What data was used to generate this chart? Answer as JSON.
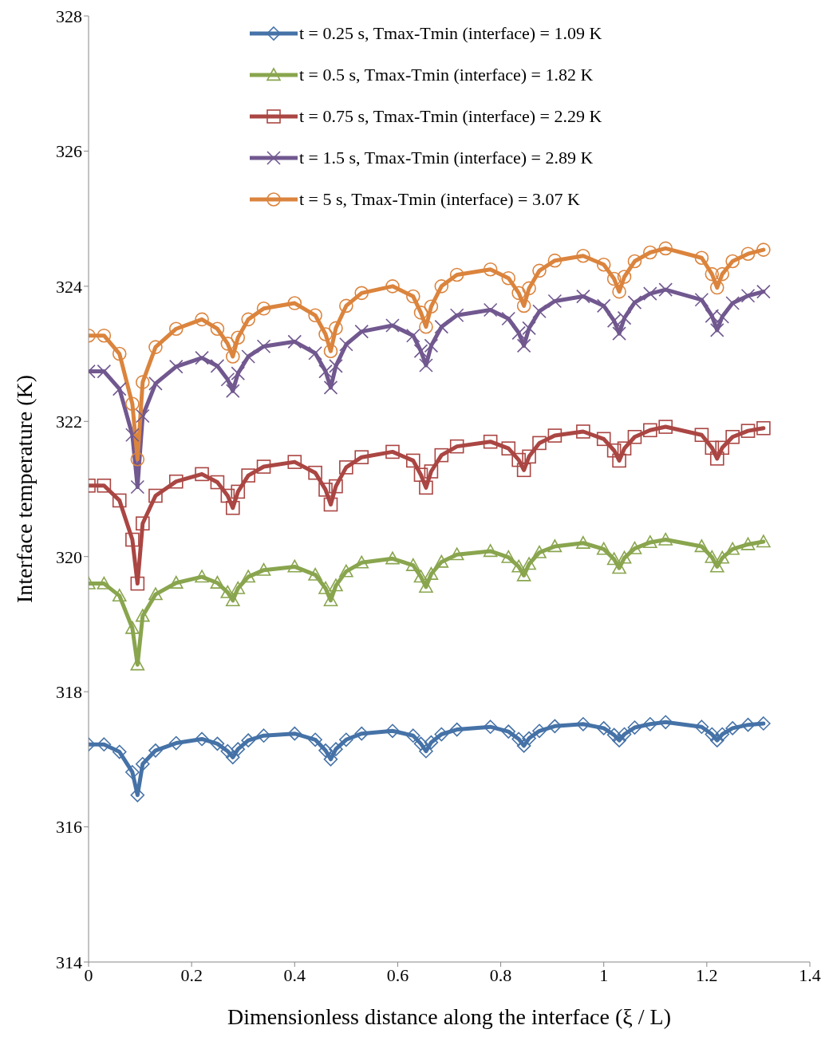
{
  "chart_data": {
    "type": "line",
    "xlabel": "Dimensionless distance along the interface (ξ / L)",
    "ylabel": "Interface temperature (K)",
    "x": [
      0,
      0.03,
      0.06,
      0.085,
      0.095,
      0.105,
      0.13,
      0.17,
      0.22,
      0.25,
      0.27,
      0.28,
      0.29,
      0.31,
      0.34,
      0.4,
      0.44,
      0.46,
      0.47,
      0.48,
      0.5,
      0.53,
      0.59,
      0.63,
      0.645,
      0.655,
      0.665,
      0.685,
      0.715,
      0.78,
      0.815,
      0.835,
      0.845,
      0.855,
      0.875,
      0.905,
      0.96,
      1.0,
      1.02,
      1.03,
      1.04,
      1.06,
      1.09,
      1.12,
      1.19,
      1.21,
      1.22,
      1.23,
      1.25,
      1.28,
      1.31
    ],
    "xlim": [
      0,
      1.4
    ],
    "xticks": [
      0,
      0.2,
      0.4,
      0.6,
      0.8,
      1,
      1.2,
      1.4
    ],
    "ylim": [
      314,
      328
    ],
    "yticks": [
      314,
      316,
      318,
      320,
      322,
      324,
      326,
      328
    ],
    "grid": false,
    "legend": "top right",
    "series": [
      {
        "name": "t = 0.25 s, Tmax-Tmin (interface) = 1.09 K",
        "color": "#4572a7",
        "marker": "diamond",
        "values": [
          317.22,
          317.22,
          317.11,
          316.81,
          316.47,
          316.93,
          317.13,
          317.24,
          317.3,
          317.23,
          317.12,
          317.03,
          317.15,
          317.28,
          317.35,
          317.38,
          317.29,
          317.13,
          317.0,
          317.15,
          317.29,
          317.38,
          317.42,
          317.35,
          317.23,
          317.12,
          317.25,
          317.37,
          317.44,
          317.48,
          317.41,
          317.3,
          317.2,
          317.31,
          317.42,
          317.49,
          317.52,
          317.46,
          317.36,
          317.28,
          317.37,
          317.47,
          317.52,
          317.55,
          317.48,
          317.37,
          317.28,
          317.37,
          317.46,
          317.51,
          317.53
        ]
      },
      {
        "name": "t = 0.5 s, Tmax-Tmin (interface) = 1.82 K",
        "color": "#89a54e",
        "marker": "triangle",
        "values": [
          319.6,
          319.6,
          319.42,
          318.94,
          318.4,
          319.12,
          319.44,
          319.61,
          319.7,
          319.61,
          319.47,
          319.35,
          319.53,
          319.7,
          319.8,
          319.85,
          319.73,
          319.53,
          319.35,
          319.57,
          319.78,
          319.91,
          319.97,
          319.87,
          319.7,
          319.55,
          319.74,
          319.92,
          320.03,
          320.08,
          319.99,
          319.85,
          319.72,
          319.89,
          320.06,
          320.15,
          320.2,
          320.11,
          319.96,
          319.83,
          319.98,
          320.12,
          320.21,
          320.25,
          320.15,
          319.99,
          319.85,
          319.98,
          320.11,
          320.18,
          320.22
        ]
      },
      {
        "name": "t = 0.75 s, Tmax-Tmin (interface) = 2.29 K",
        "color": "#aa4643",
        "marker": "square",
        "values": [
          321.05,
          321.05,
          320.83,
          320.25,
          319.6,
          320.49,
          320.9,
          321.11,
          321.22,
          321.1,
          320.9,
          320.72,
          320.96,
          321.2,
          321.33,
          321.4,
          321.24,
          320.99,
          320.77,
          321.04,
          321.32,
          321.47,
          321.55,
          321.42,
          321.21,
          321.02,
          321.26,
          321.5,
          321.63,
          321.7,
          321.6,
          321.43,
          321.28,
          321.48,
          321.68,
          321.79,
          321.85,
          321.74,
          321.57,
          321.42,
          321.6,
          321.77,
          321.87,
          321.92,
          321.8,
          321.61,
          321.45,
          321.61,
          321.77,
          321.86,
          321.9
        ]
      },
      {
        "name": "t = 1.5 s, Tmax-Tmin (interface) = 2.89 K",
        "color": "#71588f",
        "marker": "cross",
        "values": [
          322.74,
          322.74,
          322.48,
          321.8,
          321.03,
          322.08,
          322.56,
          322.81,
          322.94,
          322.82,
          322.62,
          322.45,
          322.71,
          322.96,
          323.11,
          323.18,
          323.01,
          322.74,
          322.5,
          322.82,
          323.14,
          323.33,
          323.42,
          323.27,
          323.04,
          322.83,
          323.12,
          323.4,
          323.57,
          323.65,
          323.52,
          323.31,
          323.12,
          323.38,
          323.63,
          323.78,
          323.85,
          323.71,
          323.49,
          323.3,
          323.53,
          323.76,
          323.89,
          323.95,
          323.8,
          323.56,
          323.35,
          323.55,
          323.75,
          323.86,
          323.92
        ]
      },
      {
        "name": "t = 5 s, Tmax-Tmin (interface) = 3.07 K",
        "color": "#db843d",
        "marker": "circle",
        "values": [
          323.27,
          323.27,
          323.0,
          322.26,
          321.44,
          322.58,
          323.1,
          323.37,
          323.51,
          323.37,
          323.15,
          322.96,
          323.24,
          323.51,
          323.67,
          323.75,
          323.57,
          323.29,
          323.04,
          323.38,
          323.71,
          323.9,
          324.0,
          323.85,
          323.61,
          323.4,
          323.7,
          324.0,
          324.17,
          324.25,
          324.12,
          323.9,
          323.71,
          323.97,
          324.23,
          324.38,
          324.45,
          324.32,
          324.11,
          323.92,
          324.14,
          324.37,
          324.5,
          324.56,
          324.42,
          324.18,
          323.98,
          324.18,
          324.37,
          324.48,
          324.54
        ]
      }
    ]
  }
}
